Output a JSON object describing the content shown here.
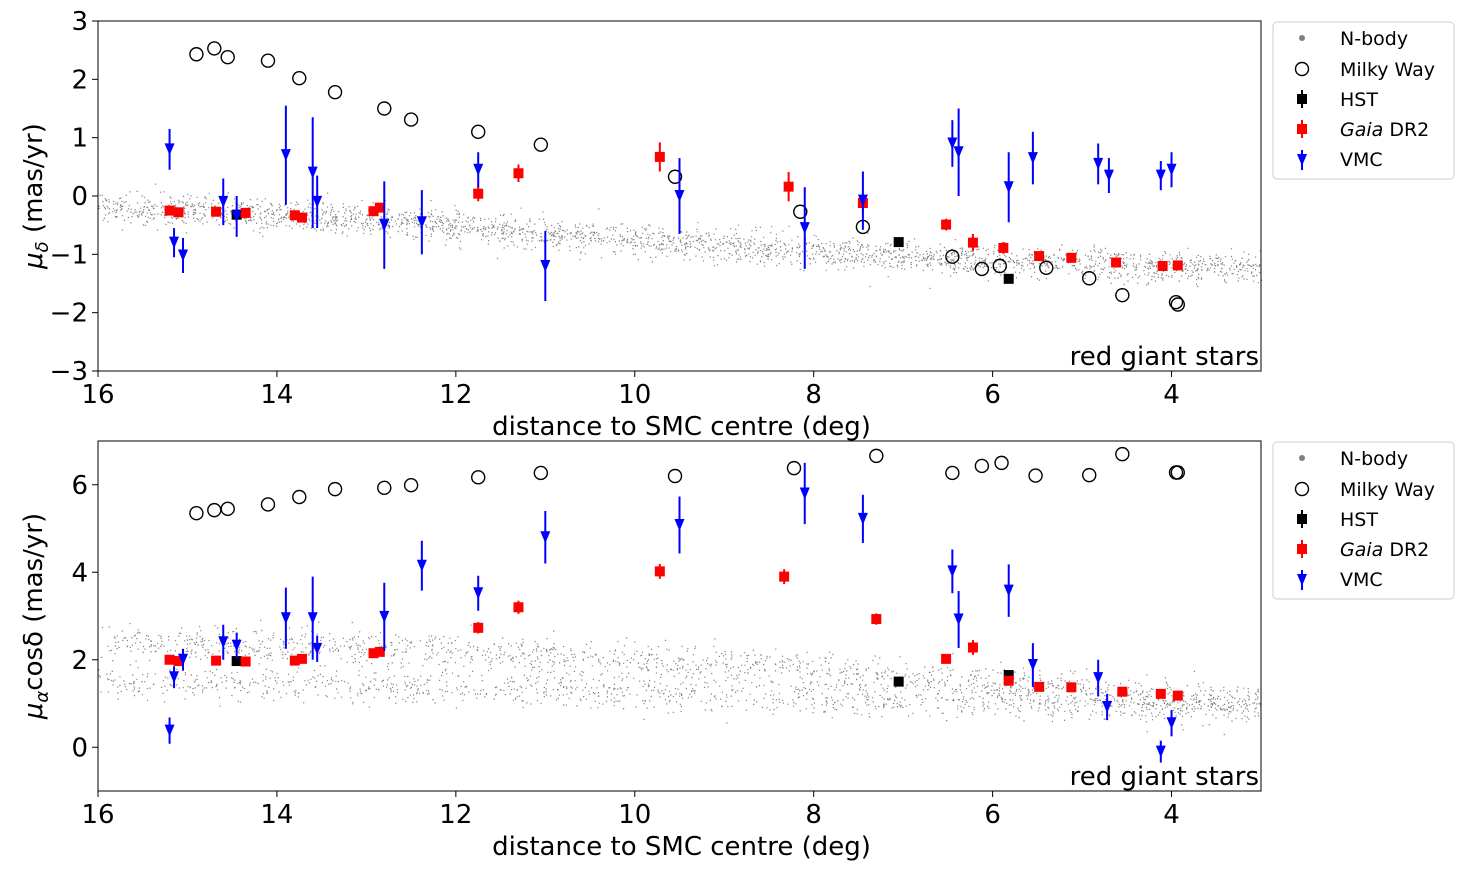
{
  "colors": {
    "nbody": "#808080",
    "milky_way": "#000000",
    "hst": "#000000",
    "gaia": "#ff0000",
    "vmc": "#0000ff"
  },
  "legend": {
    "nbody": "N-body",
    "milky_way": "Milky Way",
    "hst": "HST",
    "gaia_italic": "Gaia",
    "gaia_rest": " DR2",
    "vmc": "VMC"
  },
  "chart_data": [
    {
      "type": "scatter",
      "title": "",
      "annotation": "red giant stars",
      "xlabel": "distance to SMC centre (deg)",
      "ylabel": "μδ (mas/yr)",
      "ylabel_main": "μ",
      "ylabel_sub": "δ",
      "ylabel_rest": " (mas/yr)",
      "xlim": [
        16,
        3
      ],
      "ylim": [
        -3,
        3
      ],
      "xticks": [
        16,
        14,
        12,
        10,
        8,
        6,
        4
      ],
      "xtick_labels": [
        "16",
        "14",
        "12",
        "10",
        "8",
        "6",
        "4"
      ],
      "yticks": [
        -3,
        -2,
        -1,
        0,
        1,
        2,
        3
      ],
      "ytick_labels": [
        "−3",
        "−2",
        "−1",
        "0",
        "1",
        "2",
        "3"
      ],
      "nbody_band": {
        "x_range": [
          16,
          3
        ],
        "center": [
          [
            16,
            -0.2
          ],
          [
            14,
            -0.3
          ],
          [
            12,
            -0.5
          ],
          [
            10,
            -0.75
          ],
          [
            8,
            -0.95
          ],
          [
            6,
            -1.1
          ],
          [
            4,
            -1.2
          ],
          [
            3,
            -1.2
          ]
        ],
        "spread": 0.13
      },
      "series": [
        {
          "name": "Milky Way",
          "marker": "open-circle",
          "points": [
            [
              14.9,
              2.43
            ],
            [
              14.7,
              2.53
            ],
            [
              14.55,
              2.38
            ],
            [
              14.1,
              2.32
            ],
            [
              13.75,
              2.02
            ],
            [
              13.35,
              1.78
            ],
            [
              12.8,
              1.5
            ],
            [
              12.5,
              1.31
            ],
            [
              11.75,
              1.1
            ],
            [
              11.05,
              0.88
            ],
            [
              9.55,
              0.33
            ],
            [
              8.15,
              -0.27
            ],
            [
              7.45,
              -0.53
            ],
            [
              6.45,
              -1.04
            ],
            [
              6.12,
              -1.25
            ],
            [
              5.92,
              -1.2
            ],
            [
              5.4,
              -1.23
            ],
            [
              4.92,
              -1.41
            ],
            [
              4.55,
              -1.7
            ],
            [
              3.95,
              -1.82
            ],
            [
              3.93,
              -1.86
            ]
          ]
        },
        {
          "name": "HST",
          "marker": "square",
          "points": [
            [
              14.45,
              -0.32,
              0.07
            ],
            [
              7.05,
              -0.79,
              0.06
            ],
            [
              5.82,
              -1.42,
              0.06
            ]
          ]
        },
        {
          "name": "Gaia DR2",
          "marker": "square",
          "points": [
            [
              15.2,
              -0.25,
              0.07
            ],
            [
              15.1,
              -0.28,
              0.07
            ],
            [
              14.68,
              -0.27,
              0.07
            ],
            [
              14.35,
              -0.29,
              0.07
            ],
            [
              13.8,
              -0.33,
              0.07
            ],
            [
              13.72,
              -0.37,
              0.07
            ],
            [
              12.92,
              -0.26,
              0.07
            ],
            [
              12.85,
              -0.2,
              0.07
            ],
            [
              11.75,
              0.04,
              0.13
            ],
            [
              11.3,
              0.39,
              0.15
            ],
            [
              9.72,
              0.67,
              0.25
            ],
            [
              8.28,
              0.16,
              0.25
            ],
            [
              7.45,
              -0.12,
              0.15
            ],
            [
              6.52,
              -0.49,
              0.1
            ],
            [
              6.22,
              -0.8,
              0.15
            ],
            [
              5.88,
              -0.89,
              0.1
            ],
            [
              5.48,
              -1.03,
              0.07
            ],
            [
              5.12,
              -1.06,
              0.07
            ],
            [
              4.62,
              -1.14,
              0.07
            ],
            [
              4.1,
              -1.2,
              0.07
            ],
            [
              3.93,
              -1.19,
              0.07
            ]
          ]
        },
        {
          "name": "VMC",
          "marker": "triangle-down",
          "points": [
            [
              15.2,
              0.8,
              0.35
            ],
            [
              15.15,
              -0.8,
              0.25
            ],
            [
              15.05,
              -1.02,
              0.3
            ],
            [
              14.6,
              -0.1,
              0.4
            ],
            [
              14.45,
              -0.35,
              0.35
            ],
            [
              13.9,
              0.7,
              0.85
            ],
            [
              13.6,
              0.4,
              0.95
            ],
            [
              13.55,
              -0.1,
              0.45
            ],
            [
              12.8,
              -0.5,
              0.75
            ],
            [
              12.38,
              -0.45,
              0.55
            ],
            [
              11.75,
              0.45,
              0.3
            ],
            [
              11.0,
              -1.2,
              0.6
            ],
            [
              9.5,
              0.0,
              0.65
            ],
            [
              8.1,
              -0.55,
              0.7
            ],
            [
              7.45,
              -0.08,
              0.5
            ],
            [
              6.45,
              0.9,
              0.4
            ],
            [
              6.38,
              0.75,
              0.75
            ],
            [
              5.82,
              0.15,
              0.6
            ],
            [
              5.55,
              0.65,
              0.45
            ],
            [
              4.82,
              0.55,
              0.35
            ],
            [
              4.7,
              0.35,
              0.3
            ],
            [
              4.12,
              0.35,
              0.25
            ],
            [
              4.0,
              0.45,
              0.3
            ]
          ]
        }
      ]
    },
    {
      "type": "scatter",
      "title": "",
      "annotation": "red giant stars",
      "xlabel": "distance to SMC centre (deg)",
      "ylabel": "μαcosδ (mas/yr)",
      "ylabel_main": "μ",
      "ylabel_sub": "α",
      "ylabel_rest": "cosδ (mas/yr)",
      "xlim": [
        16,
        3
      ],
      "ylim": [
        -1,
        7
      ],
      "xticks": [
        16,
        14,
        12,
        10,
        8,
        6,
        4
      ],
      "xtick_labels": [
        "16",
        "14",
        "12",
        "10",
        "8",
        "6",
        "4"
      ],
      "yticks": [
        0,
        2,
        4,
        6
      ],
      "ytick_labels": [
        "0",
        "2",
        "4",
        "6"
      ],
      "nbody_band": {
        "x_range": [
          16,
          3
        ],
        "upper_center": [
          [
            16,
            2.4
          ],
          [
            14,
            2.35
          ],
          [
            12,
            2.2
          ],
          [
            10,
            2.0
          ],
          [
            8,
            1.8
          ],
          [
            6,
            1.45
          ],
          [
            4,
            1.15
          ],
          [
            3,
            1.05
          ]
        ],
        "lower_center": [
          [
            16,
            1.5
          ],
          [
            14,
            1.45
          ],
          [
            12,
            1.35
          ],
          [
            10,
            1.25
          ],
          [
            8,
            1.15
          ],
          [
            6,
            1.05
          ],
          [
            4,
            0.95
          ],
          [
            3,
            0.9
          ]
        ],
        "spread": 0.2
      },
      "series": [
        {
          "name": "Milky Way",
          "marker": "open-circle",
          "points": [
            [
              14.9,
              5.35
            ],
            [
              14.7,
              5.42
            ],
            [
              14.55,
              5.45
            ],
            [
              14.1,
              5.55
            ],
            [
              13.75,
              5.72
            ],
            [
              13.35,
              5.9
            ],
            [
              12.8,
              5.93
            ],
            [
              12.5,
              5.99
            ],
            [
              11.75,
              6.17
            ],
            [
              11.05,
              6.27
            ],
            [
              9.55,
              6.2
            ],
            [
              8.22,
              6.38
            ],
            [
              7.3,
              6.66
            ],
            [
              6.45,
              6.27
            ],
            [
              6.12,
              6.43
            ],
            [
              5.9,
              6.5
            ],
            [
              5.52,
              6.21
            ],
            [
              4.92,
              6.22
            ],
            [
              4.55,
              6.7
            ],
            [
              3.95,
              6.28
            ],
            [
              3.93,
              6.28
            ]
          ]
        },
        {
          "name": "HST",
          "marker": "square",
          "points": [
            [
              14.45,
              1.97,
              0.07
            ],
            [
              7.05,
              1.5,
              0.06
            ],
            [
              5.82,
              1.65,
              0.06
            ]
          ]
        },
        {
          "name": "Gaia DR2",
          "marker": "square",
          "points": [
            [
              15.2,
              2.0,
              0.07
            ],
            [
              15.1,
              1.97,
              0.07
            ],
            [
              14.68,
              1.98,
              0.07
            ],
            [
              14.35,
              1.96,
              0.07
            ],
            [
              13.8,
              1.98,
              0.07
            ],
            [
              13.72,
              2.02,
              0.07
            ],
            [
              12.92,
              2.15,
              0.07
            ],
            [
              12.85,
              2.18,
              0.07
            ],
            [
              11.75,
              2.73,
              0.13
            ],
            [
              11.3,
              3.2,
              0.15
            ],
            [
              9.72,
              4.02,
              0.17
            ],
            [
              8.33,
              3.9,
              0.17
            ],
            [
              7.3,
              2.93,
              0.13
            ],
            [
              6.52,
              2.02,
              0.1
            ],
            [
              6.22,
              2.28,
              0.17
            ],
            [
              5.82,
              1.52,
              0.1
            ],
            [
              5.48,
              1.38,
              0.07
            ],
            [
              5.12,
              1.37,
              0.07
            ],
            [
              4.55,
              1.27,
              0.07
            ],
            [
              4.12,
              1.22,
              0.07
            ],
            [
              3.93,
              1.18,
              0.07
            ]
          ]
        },
        {
          "name": "VMC",
          "marker": "triangle-down",
          "points": [
            [
              15.2,
              0.38,
              0.3
            ],
            [
              15.15,
              1.6,
              0.25
            ],
            [
              15.05,
              2.0,
              0.25
            ],
            [
              14.6,
              2.4,
              0.4
            ],
            [
              14.45,
              2.32,
              0.3
            ],
            [
              13.9,
              2.95,
              0.7
            ],
            [
              13.6,
              2.95,
              0.95
            ],
            [
              13.55,
              2.25,
              0.3
            ],
            [
              12.8,
              2.98,
              0.78
            ],
            [
              12.38,
              4.15,
              0.57
            ],
            [
              11.75,
              3.52,
              0.4
            ],
            [
              11.0,
              4.8,
              0.6
            ],
            [
              9.5,
              5.08,
              0.65
            ],
            [
              8.1,
              5.8,
              0.7
            ],
            [
              7.45,
              5.22,
              0.55
            ],
            [
              6.45,
              4.02,
              0.5
            ],
            [
              6.38,
              2.92,
              0.65
            ],
            [
              5.82,
              3.58,
              0.6
            ],
            [
              5.55,
              1.88,
              0.5
            ],
            [
              4.82,
              1.58,
              0.42
            ],
            [
              4.72,
              0.92,
              0.3
            ],
            [
              4.12,
              -0.1,
              0.25
            ],
            [
              4.0,
              0.55,
              0.3
            ]
          ]
        }
      ]
    }
  ]
}
